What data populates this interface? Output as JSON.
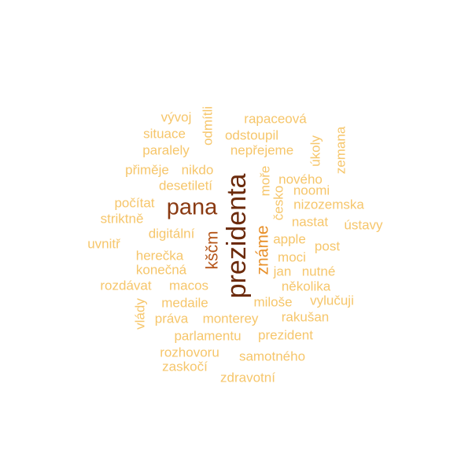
{
  "palette": {
    "light": "#f6c66b",
    "medium": "#e8902a",
    "dark": "#b5561a",
    "darkest": "#6b2a0b"
  },
  "words": [
    {
      "id": "prezidenta",
      "text": "prezidenta",
      "weight": 10,
      "color": "#6b2a0b",
      "rotated": true
    },
    {
      "id": "pana",
      "text": "pana",
      "weight": 6,
      "color": "#8a3a12",
      "rotated": false
    },
    {
      "id": "zname",
      "text": "známe",
      "weight": 4,
      "color": "#e8902a",
      "rotated": true
    },
    {
      "id": "kscm",
      "text": "kščm",
      "weight": 4,
      "color": "#b5561a",
      "rotated": true
    },
    {
      "id": "vyvoj",
      "text": "vývoj",
      "weight": 1,
      "color": "#f6c66b",
      "rotated": false
    },
    {
      "id": "odmitli",
      "text": "odmítli",
      "weight": 1,
      "color": "#f6c66b",
      "rotated": true
    },
    {
      "id": "rapaceova",
      "text": "rapaceová",
      "weight": 1,
      "color": "#f6c66b",
      "rotated": false
    },
    {
      "id": "situace",
      "text": "situace",
      "weight": 1,
      "color": "#f6c66b",
      "rotated": false
    },
    {
      "id": "odstoupil",
      "text": "odstoupil",
      "weight": 1,
      "color": "#f6c66b",
      "rotated": false
    },
    {
      "id": "zemana",
      "text": "zemana",
      "weight": 1,
      "color": "#f6c66b",
      "rotated": true
    },
    {
      "id": "ukoly",
      "text": "úkoly",
      "weight": 1,
      "color": "#f6c66b",
      "rotated": true
    },
    {
      "id": "paralely",
      "text": "paralely",
      "weight": 1,
      "color": "#f6c66b",
      "rotated": false
    },
    {
      "id": "neprejeme",
      "text": "nepřejeme",
      "weight": 1,
      "color": "#f6c66b",
      "rotated": false
    },
    {
      "id": "primeje",
      "text": "přiměje",
      "weight": 1,
      "color": "#f6c66b",
      "rotated": false
    },
    {
      "id": "nikdo",
      "text": "nikdo",
      "weight": 1,
      "color": "#f6c66b",
      "rotated": false
    },
    {
      "id": "more",
      "text": "moře",
      "weight": 1,
      "color": "#f6c66b",
      "rotated": true
    },
    {
      "id": "noveho",
      "text": "nového",
      "weight": 1,
      "color": "#f6c66b",
      "rotated": false
    },
    {
      "id": "desetileti",
      "text": "desetiletí",
      "weight": 1,
      "color": "#f6c66b",
      "rotated": false
    },
    {
      "id": "noomi",
      "text": "noomi",
      "weight": 1,
      "color": "#f6c66b",
      "rotated": false
    },
    {
      "id": "cesko",
      "text": "česko",
      "weight": 1,
      "color": "#f6c66b",
      "rotated": true
    },
    {
      "id": "pocitat",
      "text": "počítat",
      "weight": 1,
      "color": "#f6c66b",
      "rotated": false
    },
    {
      "id": "nizozemska",
      "text": "nizozemska",
      "weight": 1,
      "color": "#f6c66b",
      "rotated": false
    },
    {
      "id": "striktne",
      "text": "striktně",
      "weight": 1,
      "color": "#f6c66b",
      "rotated": false
    },
    {
      "id": "nastat",
      "text": "nastat",
      "weight": 1,
      "color": "#f6c66b",
      "rotated": false
    },
    {
      "id": "ustavy",
      "text": "ústavy",
      "weight": 1,
      "color": "#f6c66b",
      "rotated": false
    },
    {
      "id": "digitalni",
      "text": "digitální",
      "weight": 1,
      "color": "#f6c66b",
      "rotated": false
    },
    {
      "id": "apple",
      "text": "apple",
      "weight": 1,
      "color": "#f6c66b",
      "rotated": false
    },
    {
      "id": "uvnitr",
      "text": "uvnitř",
      "weight": 1,
      "color": "#f6c66b",
      "rotated": false
    },
    {
      "id": "post",
      "text": "post",
      "weight": 1,
      "color": "#f6c66b",
      "rotated": false
    },
    {
      "id": "herecka",
      "text": "herečka",
      "weight": 1,
      "color": "#f6c66b",
      "rotated": false
    },
    {
      "id": "moci",
      "text": "moci",
      "weight": 1,
      "color": "#f6c66b",
      "rotated": false
    },
    {
      "id": "konecna",
      "text": "konečná",
      "weight": 1,
      "color": "#f6c66b",
      "rotated": false
    },
    {
      "id": "jan",
      "text": "jan",
      "weight": 1,
      "color": "#f6c66b",
      "rotated": false
    },
    {
      "id": "nutne",
      "text": "nutné",
      "weight": 1,
      "color": "#f6c66b",
      "rotated": false
    },
    {
      "id": "rozdavat",
      "text": "rozdávat",
      "weight": 1,
      "color": "#f6c66b",
      "rotated": false
    },
    {
      "id": "macos",
      "text": "macos",
      "weight": 1,
      "color": "#f6c66b",
      "rotated": false
    },
    {
      "id": "nekolika",
      "text": "několika",
      "weight": 1,
      "color": "#f6c66b",
      "rotated": false
    },
    {
      "id": "vlady",
      "text": "vlády",
      "weight": 1,
      "color": "#f6c66b",
      "rotated": true
    },
    {
      "id": "medaile",
      "text": "medaile",
      "weight": 1,
      "color": "#f6c66b",
      "rotated": false
    },
    {
      "id": "milose",
      "text": "miloše",
      "weight": 1,
      "color": "#f6c66b",
      "rotated": false
    },
    {
      "id": "vylucuji",
      "text": "vylučuji",
      "weight": 1,
      "color": "#f6c66b",
      "rotated": false
    },
    {
      "id": "prava",
      "text": "práva",
      "weight": 1,
      "color": "#f6c66b",
      "rotated": false
    },
    {
      "id": "monterey",
      "text": "monterey",
      "weight": 1,
      "color": "#f6c66b",
      "rotated": false
    },
    {
      "id": "rakusan",
      "text": "rakušan",
      "weight": 1,
      "color": "#f6c66b",
      "rotated": false
    },
    {
      "id": "parlamentu",
      "text": "parlamentu",
      "weight": 1,
      "color": "#f6c66b",
      "rotated": false
    },
    {
      "id": "prezident",
      "text": "prezident",
      "weight": 1,
      "color": "#f6c66b",
      "rotated": false
    },
    {
      "id": "rozhovoru",
      "text": "rozhovoru",
      "weight": 1,
      "color": "#f6c66b",
      "rotated": false
    },
    {
      "id": "samotneho",
      "text": "samotného",
      "weight": 1,
      "color": "#f6c66b",
      "rotated": false
    },
    {
      "id": "zaskoci",
      "text": "zaskočí",
      "weight": 1,
      "color": "#f6c66b",
      "rotated": false
    },
    {
      "id": "zdravotni",
      "text": "zdravotní",
      "weight": 1,
      "color": "#f6c66b",
      "rotated": false
    }
  ]
}
